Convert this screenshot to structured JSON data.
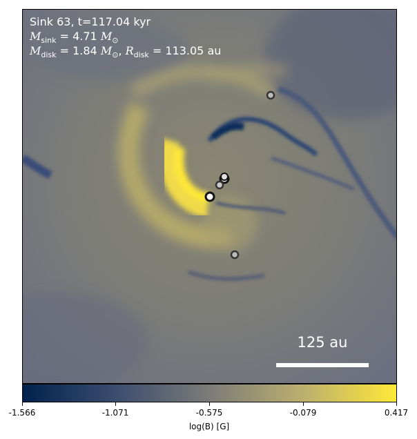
{
  "info": {
    "sink_line": "Sink 63, t=117.04 kyr",
    "msink_value": "4.71",
    "mdisk_value": "1.84",
    "rdisk_value": "113.05",
    "unit_msun": "M",
    "unit_au": "au"
  },
  "scalebar": {
    "label": "125 au"
  },
  "colorbar": {
    "label": "log(B) [G]",
    "ticks": [
      "-1.566",
      "-1.071",
      "-0.575",
      "-0.079",
      "0.417"
    ],
    "cmap": [
      "#00224e",
      "#3c4d6e",
      "#7c7b78",
      "#bcaf6f",
      "#fee838"
    ]
  },
  "sinks": {
    "count": 6
  }
}
